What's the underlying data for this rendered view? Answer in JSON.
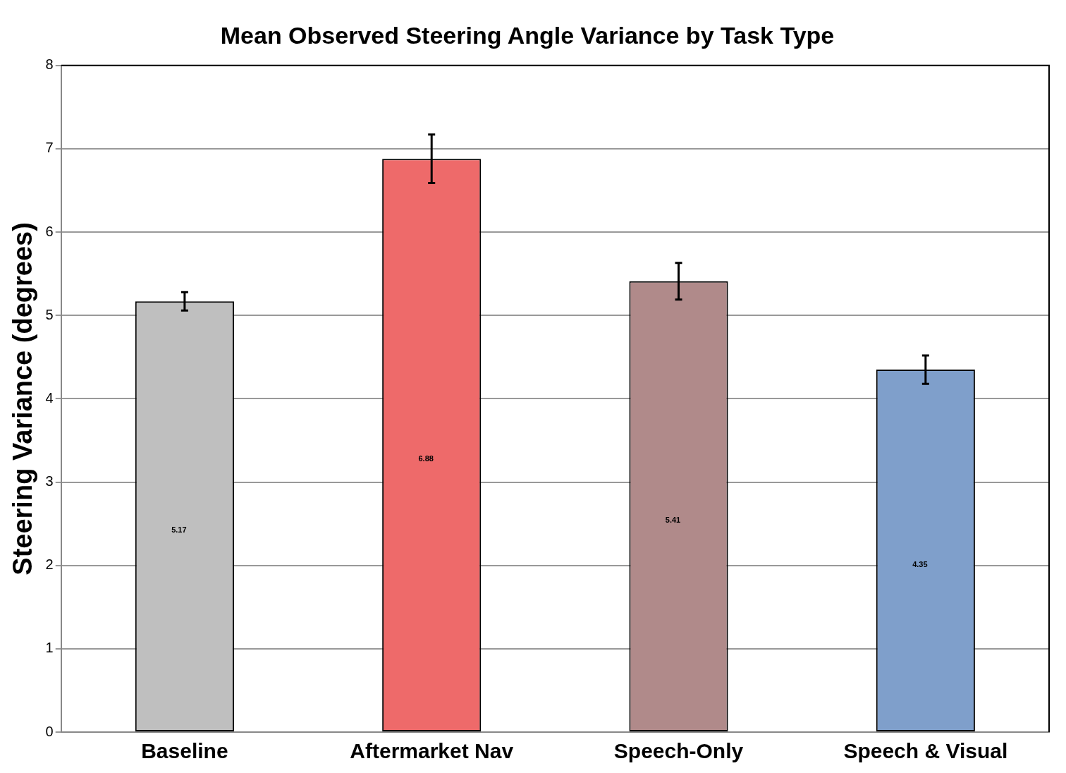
{
  "chart_data": {
    "type": "bar",
    "title": "Mean Observed Steering Angle Variance by Task Type",
    "ylabel": "Steering Variance (degrees)",
    "categories": [
      "Baseline",
      "Aftermarket Nav",
      "Speech-Only",
      "Speech & Visual"
    ],
    "values": [
      5.17,
      6.88,
      5.41,
      4.35
    ],
    "errors": [
      0.11,
      0.29,
      0.22,
      0.17
    ],
    "colors": [
      "#bfbfbf",
      "#ee6a6a",
      "#b08a8a",
      "#7f9fcb"
    ],
    "ylim": [
      0,
      8
    ],
    "yticks": [
      0,
      1,
      2,
      3,
      4,
      5,
      6,
      7,
      8
    ],
    "grid": "y",
    "legend": false,
    "data_labels": true
  }
}
